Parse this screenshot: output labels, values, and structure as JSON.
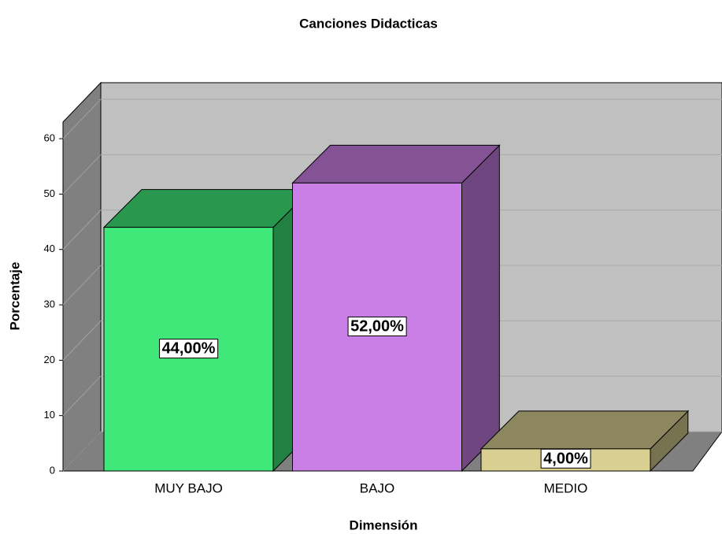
{
  "chart_data": {
    "type": "bar3d",
    "title": "Canciones Didacticas",
    "x_label": "Dimensión",
    "y_label": "Porcentaje",
    "categories": [
      "MUY BAJO",
      "BAJO",
      "MEDIO"
    ],
    "values": [
      44,
      52,
      4
    ],
    "value_labels": [
      "44,00%",
      "52,00%",
      "4,00%"
    ],
    "colors": [
      "#40e87a",
      "#c97fe6",
      "#d8cf90"
    ],
    "ylim": [
      0,
      63
    ],
    "yticks": [
      0,
      10,
      20,
      30,
      40,
      50,
      60
    ],
    "grid": true
  }
}
